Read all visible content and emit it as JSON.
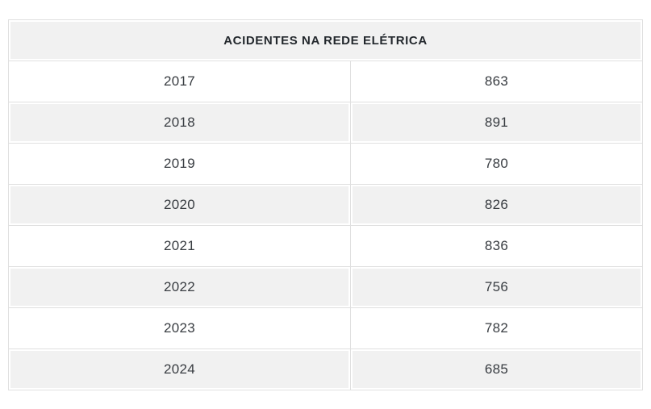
{
  "table": {
    "title": "ACIDENTES NA REDE ELÉTRICA",
    "rows": [
      {
        "year": "2017",
        "value": "863"
      },
      {
        "year": "2018",
        "value": "891"
      },
      {
        "year": "2019",
        "value": "780"
      },
      {
        "year": "2020",
        "value": "826"
      },
      {
        "year": "2021",
        "value": "836"
      },
      {
        "year": "2022",
        "value": "756"
      },
      {
        "year": "2023",
        "value": "782"
      },
      {
        "year": "2024",
        "value": "685"
      }
    ]
  },
  "chart_data": {
    "type": "table",
    "title": "ACIDENTES NA REDE ELÉTRICA",
    "categories": [
      "2017",
      "2018",
      "2019",
      "2020",
      "2021",
      "2022",
      "2023",
      "2024"
    ],
    "values": [
      863,
      891,
      780,
      826,
      836,
      756,
      782,
      685
    ],
    "layout": "two-column table, header spans both columns, alternating row shading"
  },
  "colors": {
    "row_alt_bg": "#f1f1f1",
    "header_bg": "#f1f1f1",
    "inner_border": "#e0e0e0",
    "outer_border": "#d3d3d3",
    "header_text": "#23282d",
    "cell_text": "#383c41",
    "page_bg": "#ffffff"
  }
}
